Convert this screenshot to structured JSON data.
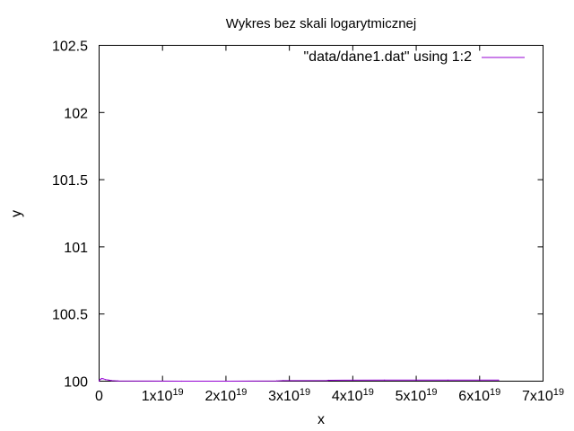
{
  "chart_data": {
    "type": "line",
    "title": "Wykres bez skali logarytmicznej",
    "xlabel": "x",
    "ylabel": "y",
    "xlim": [
      0,
      7e+19
    ],
    "ylim": [
      100,
      102.5
    ],
    "x_ticks": [
      {
        "value": 0,
        "base": "0",
        "exp": ""
      },
      {
        "value": 1e+19,
        "base": "1x10",
        "exp": "19"
      },
      {
        "value": 2e+19,
        "base": "2x10",
        "exp": "19"
      },
      {
        "value": 3e+19,
        "base": "3x10",
        "exp": "19"
      },
      {
        "value": 4e+19,
        "base": "4x10",
        "exp": "19"
      },
      {
        "value": 5e+19,
        "base": "5x10",
        "exp": "19"
      },
      {
        "value": 6e+19,
        "base": "6x10",
        "exp": "19"
      },
      {
        "value": 7e+19,
        "base": "7x10",
        "exp": "19"
      }
    ],
    "y_ticks": [
      {
        "value": 100,
        "label": "100"
      },
      {
        "value": 100.5,
        "label": "100.5"
      },
      {
        "value": 101,
        "label": "101"
      },
      {
        "value": 101.5,
        "label": "101.5"
      },
      {
        "value": 102,
        "label": "102"
      },
      {
        "value": 102.5,
        "label": "102.5"
      }
    ],
    "legend_position": "top-right",
    "grid": false,
    "series": [
      {
        "name": "\"data/dane1.dat\" using 1:2",
        "color": "#9400d3",
        "points": [
          [
            0,
            100.0
          ],
          [
            1e+17,
            100.01
          ],
          [
            2.5e+17,
            100.015
          ],
          [
            4.5e+17,
            100.02
          ],
          [
            7e+17,
            100.017
          ],
          [
            1e+18,
            100.012
          ],
          [
            1.5e+18,
            100.008
          ],
          [
            2e+18,
            100.004
          ],
          [
            3e+18,
            100.002
          ],
          [
            1.3e+19,
            100.0
          ],
          [
            2e+19,
            100.0
          ],
          [
            2.8e+19,
            100.002
          ],
          [
            2.9e+19,
            100.004
          ],
          [
            3.6e+19,
            100.005
          ],
          [
            3.62e+19,
            100.007
          ],
          [
            4.5e+19,
            100.008
          ],
          [
            5.5e+19,
            100.008
          ],
          [
            6.3e+19,
            100.008
          ]
        ]
      }
    ]
  }
}
